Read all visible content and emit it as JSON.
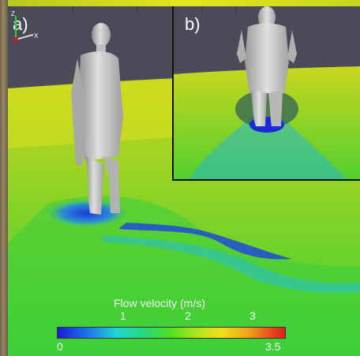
{
  "panels": {
    "main_label": "a)",
    "inset_label": "b)"
  },
  "colorbar": {
    "title": "Flow velocity (m/s)",
    "min_label": "0",
    "max_label": "3.5",
    "tick_labels": [
      "1",
      "2",
      "3"
    ],
    "colors": [
      "#1a1ad9",
      "#22d6d6",
      "#52e01c",
      "#f0e01c",
      "#e0201c"
    ]
  },
  "axes_triad": {
    "z_label": "Z",
    "x_label": "X"
  },
  "colors": {
    "background": "#4a4a58",
    "figure": "#c8c8c8",
    "flow_dominant": "#b8e31c"
  }
}
